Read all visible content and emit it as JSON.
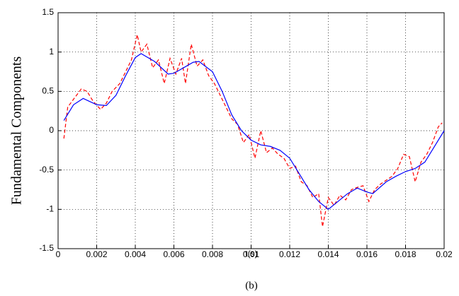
{
  "chart_data": {
    "type": "line",
    "xlabel": "t(s)",
    "ylabel": "Fundamental Components",
    "caption": "(b)",
    "xlim": [
      0,
      0.02
    ],
    "xticks": [
      0,
      0.002,
      0.004,
      0.006,
      0.008,
      0.01,
      0.012,
      0.014,
      0.016,
      0.018,
      0.02
    ],
    "ylim": [
      -1.5,
      1.5
    ],
    "yticks": [
      -1.5,
      -1,
      -0.5,
      0,
      0.5,
      1,
      1.5
    ],
    "grid": true,
    "series": [
      {
        "color": "#ff0000",
        "dash": true,
        "x": [
          0.0003,
          0.0005,
          0.0008,
          0.0012,
          0.0015,
          0.0018,
          0.0022,
          0.0025,
          0.0028,
          0.0032,
          0.0035,
          0.0038,
          0.0041,
          0.0043,
          0.0046,
          0.0049,
          0.0052,
          0.0055,
          0.0058,
          0.0061,
          0.0064,
          0.0066,
          0.0069,
          0.0072,
          0.0075,
          0.0078,
          0.0081,
          0.0084,
          0.0087,
          0.009,
          0.0093,
          0.0096,
          0.0099,
          0.0102,
          0.0105,
          0.0108,
          0.0111,
          0.0114,
          0.0117,
          0.012,
          0.0123,
          0.0126,
          0.0129,
          0.0132,
          0.0135,
          0.0137,
          0.014,
          0.0143,
          0.0146,
          0.0149,
          0.0152,
          0.0155,
          0.0158,
          0.0161,
          0.0164,
          0.0167,
          0.017,
          0.0173,
          0.0176,
          0.0179,
          0.0182,
          0.0185,
          0.0188,
          0.0191,
          0.0194,
          0.0197,
          0.0199
        ],
        "values": [
          -0.1,
          0.3,
          0.4,
          0.53,
          0.5,
          0.38,
          0.27,
          0.35,
          0.5,
          0.6,
          0.75,
          0.9,
          1.22,
          1.0,
          1.1,
          0.8,
          0.9,
          0.6,
          0.92,
          0.72,
          0.92,
          0.6,
          1.1,
          0.82,
          0.9,
          0.7,
          0.6,
          0.45,
          0.3,
          0.15,
          0.08,
          -0.15,
          -0.05,
          -0.35,
          0.0,
          -0.28,
          -0.22,
          -0.3,
          -0.35,
          -0.48,
          -0.45,
          -0.65,
          -0.7,
          -0.85,
          -0.8,
          -1.22,
          -0.85,
          -0.95,
          -0.82,
          -0.88,
          -0.75,
          -0.72,
          -0.7,
          -0.9,
          -0.75,
          -0.68,
          -0.63,
          -0.58,
          -0.48,
          -0.3,
          -0.33,
          -0.65,
          -0.4,
          -0.3,
          -0.15,
          0.05,
          0.1
        ]
      },
      {
        "color": "#0000ff",
        "dash": false,
        "x": [
          0.0003,
          0.0008,
          0.0013,
          0.002,
          0.0025,
          0.003,
          0.0035,
          0.004,
          0.0043,
          0.005,
          0.0057,
          0.006,
          0.0065,
          0.007,
          0.0073,
          0.008,
          0.0085,
          0.009,
          0.0095,
          0.01,
          0.0105,
          0.011,
          0.0115,
          0.012,
          0.0125,
          0.013,
          0.0135,
          0.014,
          0.0145,
          0.015,
          0.0155,
          0.016,
          0.0163,
          0.017,
          0.0175,
          0.018,
          0.0185,
          0.019,
          0.0195,
          0.02
        ],
        "values": [
          0.13,
          0.33,
          0.41,
          0.33,
          0.32,
          0.45,
          0.7,
          0.93,
          0.98,
          0.88,
          0.72,
          0.73,
          0.8,
          0.87,
          0.88,
          0.75,
          0.5,
          0.2,
          0.0,
          -0.12,
          -0.18,
          -0.2,
          -0.25,
          -0.35,
          -0.55,
          -0.75,
          -0.9,
          -1.0,
          -0.9,
          -0.8,
          -0.73,
          -0.78,
          -0.8,
          -0.65,
          -0.58,
          -0.52,
          -0.48,
          -0.4,
          -0.2,
          0.0
        ]
      }
    ]
  }
}
